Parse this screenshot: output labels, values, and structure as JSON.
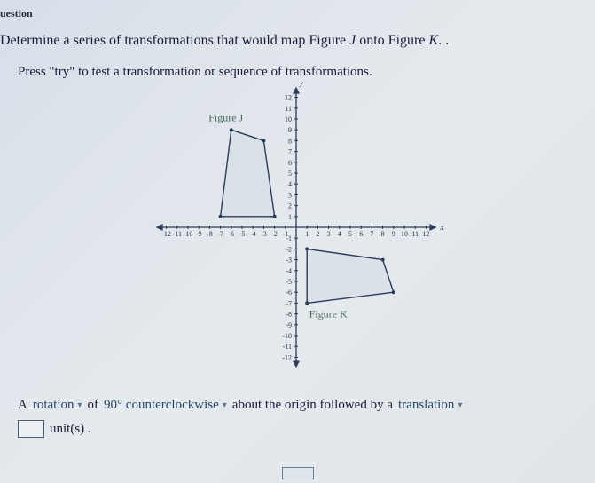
{
  "header_cutoff": "uestion",
  "prompt_line1_pre": "Determine a series of transformations that would map Figure ",
  "prompt_figJ": "J",
  "prompt_mid": " onto Figure ",
  "prompt_figK": "K",
  "prompt_line1_post": ". .",
  "prompt_line2": "Press \"try\" to test a transformation or sequence of transformations.",
  "graph": {
    "x_min": -12,
    "x_max": 12,
    "y_min": -12,
    "y_max": 12,
    "x_ticks": [
      -12,
      -11,
      -10,
      -9,
      -8,
      -7,
      -6,
      -5,
      -4,
      -3,
      -2,
      -1,
      1,
      2,
      3,
      4,
      5,
      6,
      7,
      8,
      9,
      10,
      11,
      12
    ],
    "y_ticks": [
      -12,
      -11,
      -10,
      -9,
      -8,
      -7,
      -6,
      -5,
      -4,
      -3,
      -2,
      -1,
      1,
      2,
      3,
      4,
      5,
      6,
      7,
      8,
      9,
      10,
      11,
      12
    ],
    "axis_x_label": "x",
    "axis_y_label": "y",
    "figureJ": {
      "label": "Figure J",
      "points": [
        [
          -7,
          1
        ],
        [
          -2,
          1
        ],
        [
          -3,
          8
        ],
        [
          -6,
          9
        ]
      ]
    },
    "figureK": {
      "label": "Figure K",
      "points": [
        [
          1,
          -7
        ],
        [
          1,
          -2
        ],
        [
          8,
          -3
        ],
        [
          9,
          -6
        ]
      ]
    },
    "colors": {
      "axis": "#2b3b5a",
      "shape_stroke": "#2b3b5a",
      "shape_fill": "rgba(200,215,225,0.35)",
      "fig_label": "#4a6a5a",
      "tick_label": "#283550",
      "background": "#e0e6ea"
    }
  },
  "answer": {
    "a_label": "A",
    "transform1": "rotation",
    "of": "of",
    "degrees": "90° counterclockwise",
    "about": "about the origin followed by a",
    "transform2": "translation",
    "units_label": "unit(s) ."
  }
}
